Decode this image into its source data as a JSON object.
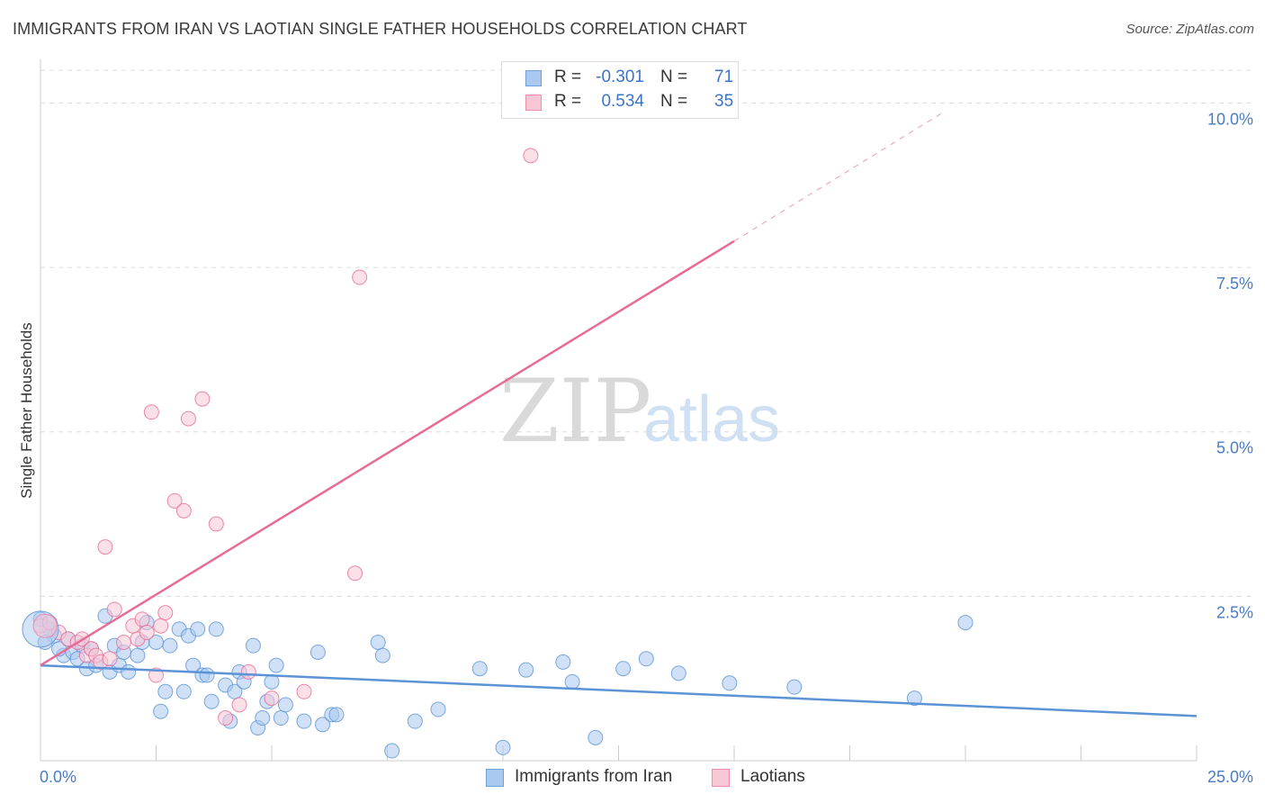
{
  "title": "IMMIGRANTS FROM IRAN VS LAOTIAN SINGLE FATHER HOUSEHOLDS CORRELATION CHART",
  "source": "Source: ZipAtlas.com",
  "watermark": {
    "zip": "ZIP",
    "atlas": "atlas"
  },
  "legend": {
    "r_label": "R =",
    "n_label": "N =",
    "rows": [
      {
        "r": "-0.301",
        "n": "71",
        "color": "#a9c9f0",
        "border": "#6f9fd8"
      },
      {
        "r": "0.534",
        "n": "35",
        "color": "#f9c6d6",
        "border": "#ee8fae"
      }
    ]
  },
  "bottom_legend": [
    {
      "label": "Immigrants from Iran",
      "color": "#a9c9f0",
      "border": "#6f9fd8"
    },
    {
      "label": "Laotians",
      "color": "#f9c6d6",
      "border": "#ee8fae"
    }
  ],
  "chart_data": {
    "type": "scatter",
    "title": "IMMIGRANTS FROM IRAN VS LAOTIAN SINGLE FATHER HOUSEHOLDS CORRELATION CHART",
    "xlabel": "",
    "ylabel": "Single Father Households",
    "xlim": [
      0,
      25
    ],
    "ylim": [
      0,
      10
    ],
    "x_tick_labels": [
      "0.0%",
      "25.0%"
    ],
    "y_tick_labels": [
      "2.5%",
      "5.0%",
      "7.5%",
      "10.0%"
    ],
    "y_ticks": [
      2.5,
      5.0,
      7.5,
      10.0
    ],
    "grid": true,
    "legend_position": "top-center",
    "series": [
      {
        "name": "Immigrants from Iran",
        "color": "#5b93d6",
        "fill": "#a9c9f0",
        "trend": {
          "x": [
            0,
            25
          ],
          "y": [
            1.45,
            0.68
          ]
        },
        "points": [
          [
            0.0,
            2.15
          ],
          [
            0.3,
            1.9
          ],
          [
            0.5,
            1.6
          ],
          [
            0.7,
            1.65
          ],
          [
            0.8,
            1.55
          ],
          [
            1.0,
            1.4
          ],
          [
            0.9,
            1.75
          ],
          [
            1.2,
            1.45
          ],
          [
            1.4,
            2.2
          ],
          [
            1.5,
            1.35
          ],
          [
            1.6,
            1.75
          ],
          [
            1.7,
            1.45
          ],
          [
            1.8,
            1.65
          ],
          [
            1.9,
            1.35
          ],
          [
            2.1,
            1.6
          ],
          [
            2.2,
            1.8
          ],
          [
            2.3,
            2.1
          ],
          [
            2.5,
            1.8
          ],
          [
            2.6,
            0.75
          ],
          [
            2.7,
            1.05
          ],
          [
            2.8,
            1.75
          ],
          [
            3.0,
            2.0
          ],
          [
            3.1,
            1.05
          ],
          [
            3.2,
            1.9
          ],
          [
            3.3,
            1.45
          ],
          [
            3.4,
            2.0
          ],
          [
            3.5,
            1.3
          ],
          [
            3.6,
            1.3
          ],
          [
            3.7,
            0.9
          ],
          [
            3.8,
            2.0
          ],
          [
            4.0,
            1.15
          ],
          [
            4.1,
            0.6
          ],
          [
            4.2,
            1.05
          ],
          [
            4.3,
            1.35
          ],
          [
            4.4,
            1.2
          ],
          [
            4.6,
            1.75
          ],
          [
            4.7,
            0.5
          ],
          [
            4.8,
            0.65
          ],
          [
            4.9,
            0.9
          ],
          [
            5.0,
            1.2
          ],
          [
            5.1,
            1.45
          ],
          [
            5.2,
            0.65
          ],
          [
            5.3,
            0.85
          ],
          [
            5.7,
            0.6
          ],
          [
            6.0,
            1.65
          ],
          [
            6.1,
            0.55
          ],
          [
            6.3,
            0.7
          ],
          [
            6.4,
            0.7
          ],
          [
            7.3,
            1.8
          ],
          [
            7.4,
            1.6
          ],
          [
            7.6,
            0.15
          ],
          [
            8.1,
            0.6
          ],
          [
            8.6,
            0.78
          ],
          [
            9.5,
            1.4
          ],
          [
            10.0,
            0.2
          ],
          [
            10.5,
            1.38
          ],
          [
            11.3,
            1.5
          ],
          [
            11.5,
            1.2
          ],
          [
            12.0,
            0.35
          ],
          [
            12.6,
            1.4
          ],
          [
            13.1,
            1.55
          ],
          [
            13.8,
            1.33
          ],
          [
            14.9,
            1.18
          ],
          [
            16.3,
            1.12
          ],
          [
            18.9,
            0.95
          ],
          [
            20.0,
            2.1
          ],
          [
            0.1,
            1.8
          ],
          [
            0.6,
            1.85
          ],
          [
            1.1,
            1.7
          ],
          [
            0.2,
            2.0
          ],
          [
            0.4,
            1.7
          ]
        ]
      },
      {
        "name": "Laotians",
        "color": "#e86b96",
        "fill": "#f9c6d6",
        "trend": {
          "x": [
            0,
            15
          ],
          "y": [
            1.45,
            7.9
          ]
        },
        "trend_dashed": {
          "x": [
            15,
            19.5
          ],
          "y": [
            7.9,
            9.85
          ]
        },
        "points": [
          [
            0.0,
            2.05
          ],
          [
            0.2,
            2.1
          ],
          [
            0.4,
            1.95
          ],
          [
            0.6,
            1.85
          ],
          [
            0.8,
            1.8
          ],
          [
            0.9,
            1.85
          ],
          [
            1.0,
            1.6
          ],
          [
            1.1,
            1.7
          ],
          [
            1.2,
            1.6
          ],
          [
            1.3,
            1.5
          ],
          [
            1.4,
            3.25
          ],
          [
            1.5,
            1.55
          ],
          [
            1.6,
            2.3
          ],
          [
            1.8,
            1.8
          ],
          [
            2.0,
            2.05
          ],
          [
            2.1,
            1.85
          ],
          [
            2.2,
            2.15
          ],
          [
            2.3,
            1.95
          ],
          [
            2.4,
            5.3
          ],
          [
            2.5,
            1.3
          ],
          [
            2.6,
            2.05
          ],
          [
            2.7,
            2.25
          ],
          [
            2.9,
            3.95
          ],
          [
            3.1,
            3.8
          ],
          [
            3.2,
            5.2
          ],
          [
            3.5,
            5.5
          ],
          [
            3.8,
            3.6
          ],
          [
            4.0,
            0.65
          ],
          [
            4.3,
            0.85
          ],
          [
            4.5,
            1.35
          ],
          [
            5.0,
            0.95
          ],
          [
            5.7,
            1.05
          ],
          [
            6.8,
            2.85
          ],
          [
            6.9,
            7.35
          ],
          [
            10.6,
            9.2
          ]
        ]
      }
    ]
  }
}
